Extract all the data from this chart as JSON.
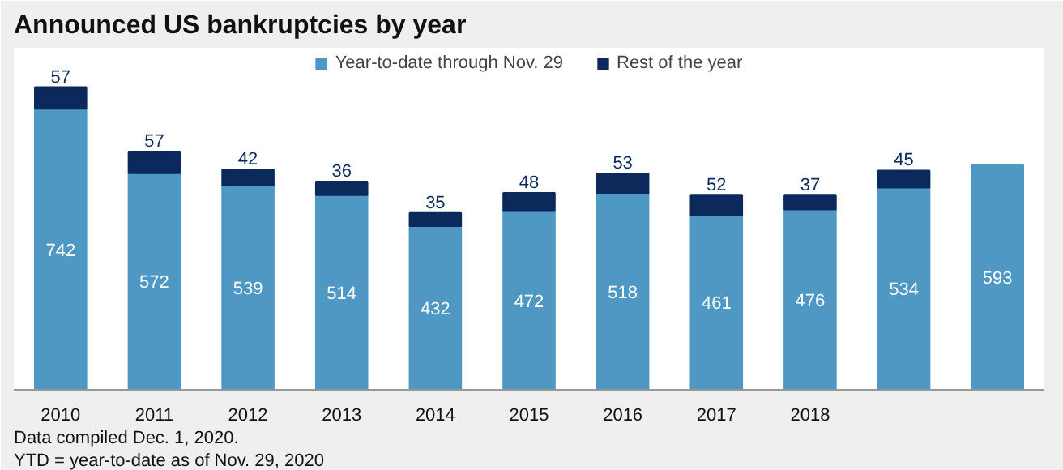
{
  "chart_data": {
    "type": "bar",
    "title": "Announced US bankruptcies by year",
    "stacked": true,
    "data_labels": true,
    "legend": "top",
    "grid": false,
    "categories": [
      "2010",
      "2011",
      "2012",
      "2013",
      "2014",
      "2015",
      "2016",
      "2017",
      "2018",
      null,
      null
    ],
    "series": [
      {
        "name": "Year-to-date through Nov. 29",
        "color": "#4f98c3",
        "values": [
          742,
          572,
          539,
          514,
          432,
          472,
          518,
          461,
          476,
          534,
          593
        ]
      },
      {
        "name": "Rest of the year",
        "color": "#0b2a5b",
        "values": [
          57,
          57,
          42,
          36,
          35,
          48,
          53,
          52,
          37,
          45,
          null
        ]
      }
    ],
    "annotations": [
      "Data compiled Dec. 1, 2020.",
      "YTD = year-to-date as of Nov. 29, 2020"
    ]
  }
}
